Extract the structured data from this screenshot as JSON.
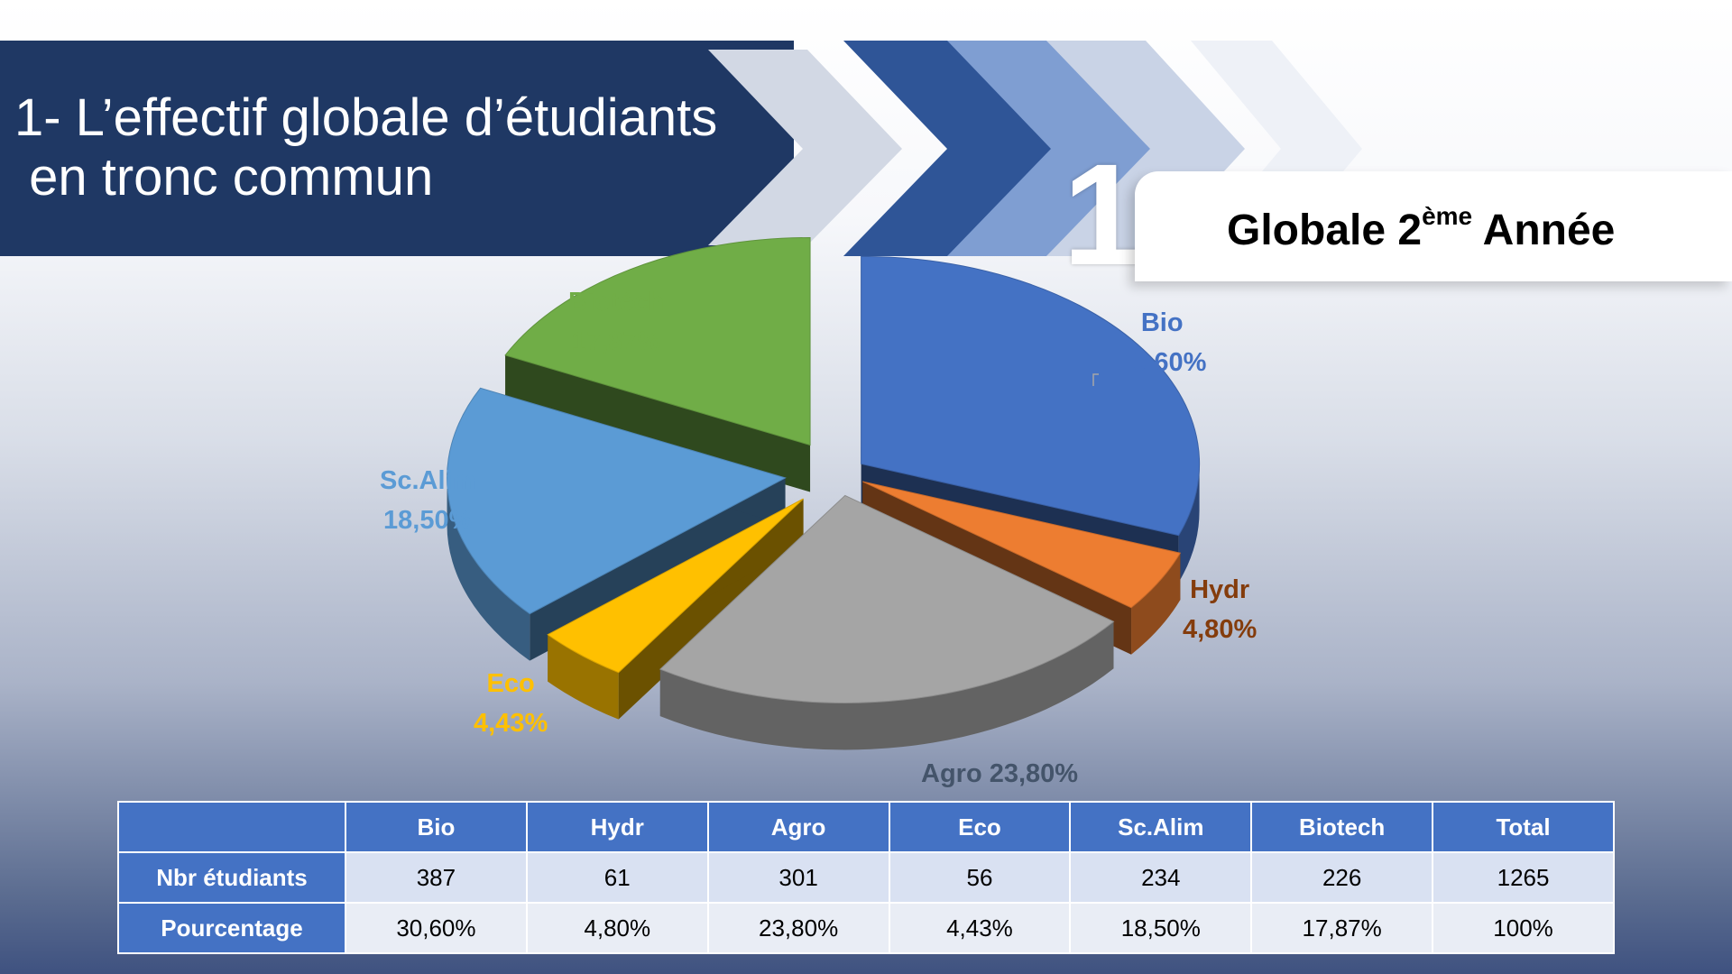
{
  "header": {
    "title": "1- L’effectif globale d’étudiants\n en tronc commun",
    "slide_number": "1",
    "subtitle_main": "Globale 2",
    "subtitle_sup": "ème",
    "subtitle_end": " Année"
  },
  "chart_data": {
    "type": "pie",
    "title": "",
    "style": "3d-exploded",
    "slices": [
      {
        "label": "Bio",
        "percent_label": "30,60%",
        "value": 30.6,
        "color": "#4472c4"
      },
      {
        "label": "Hydr",
        "percent_label": "4,80%",
        "value": 4.8,
        "color": "#ed7d31"
      },
      {
        "label": "Agro",
        "percent_label": "23,80%",
        "value": 23.8,
        "color": "#a5a5a5",
        "label_color": "#44546a"
      },
      {
        "label": "Eco",
        "percent_label": "4,43%",
        "value": 4.43,
        "color": "#ffc000"
      },
      {
        "label": "Sc.Alim",
        "percent_label": "18,50%",
        "value": 18.5,
        "color": "#5b9bd5"
      },
      {
        "label": "Biotéch",
        "percent_label": "17,87%",
        "value": 17.87,
        "color": "#70ad47"
      }
    ]
  },
  "table": {
    "columns": [
      "",
      "Bio",
      "Hydr",
      "Agro",
      "Eco",
      "Sc.Alim",
      "Biotech",
      "Total"
    ],
    "rows": [
      {
        "label": "Nbr étudiants",
        "values": [
          "387",
          "61",
          "301",
          "56",
          "234",
          "226",
          "1265"
        ]
      },
      {
        "label": "Pourcentage",
        "values": [
          "30,60%",
          "4,80%",
          "23,80%",
          "4,43%",
          "18,50%",
          "17,87%",
          "100%"
        ]
      }
    ]
  }
}
